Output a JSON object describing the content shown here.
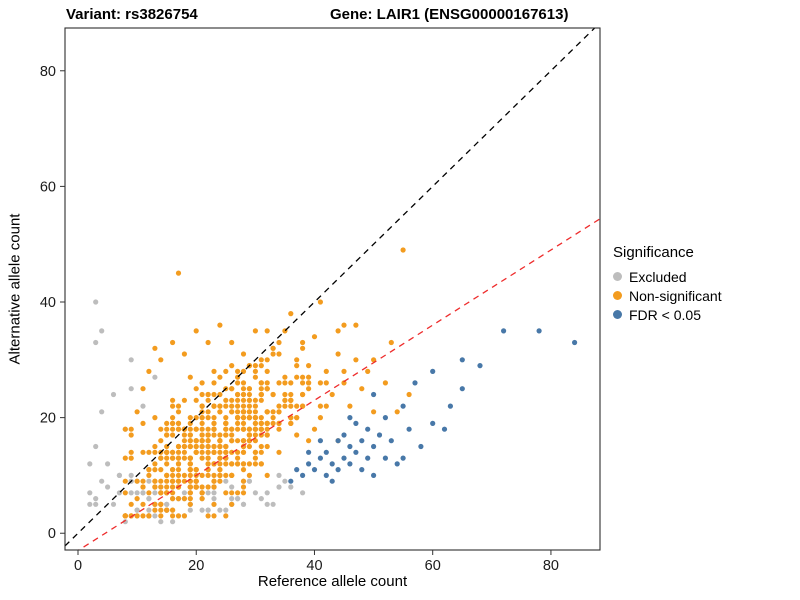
{
  "chart_data": {
    "type": "scatter",
    "title_left": "Variant: rs3826754",
    "title_right": "Gene: LAIR1 (ENSG00000167613)",
    "xlabel": "Reference allele count",
    "ylabel": "Alternative allele count",
    "xlim": [
      -2.2,
      88.3
    ],
    "ylim": [
      -2.9,
      87.4
    ],
    "xticks": [
      0,
      20,
      40,
      60,
      80
    ],
    "yticks": [
      0,
      20,
      40,
      60,
      80
    ],
    "grid": false,
    "legend": {
      "title": "Significance",
      "position": "right",
      "items": [
        {
          "id": "excluded",
          "label": "Excluded",
          "color": "#BDBDBD"
        },
        {
          "id": "nonsig",
          "label": "Non-significant",
          "color": "#F39C1F"
        },
        {
          "id": "fdr",
          "label": "FDR < 0.05",
          "color": "#4878A8"
        }
      ]
    },
    "lines": [
      {
        "name": "identity",
        "slope": 1,
        "intercept": 0,
        "color": "#000000",
        "dash": "6,5"
      },
      {
        "name": "fit",
        "slope": 0.65,
        "intercept": -3,
        "color": "#EE2C2C",
        "dash": "6,5"
      }
    ],
    "series": [
      {
        "id": "excluded",
        "name": "Excluded",
        "color": "#BDBDBD",
        "points": [
          [
            3,
            40
          ],
          [
            4,
            35
          ],
          [
            3,
            33
          ],
          [
            9,
            30
          ],
          [
            13,
            27
          ],
          [
            9,
            25
          ],
          [
            6,
            24
          ],
          [
            4,
            21
          ],
          [
            11,
            22
          ],
          [
            8,
            18
          ],
          [
            3,
            15
          ],
          [
            5,
            12
          ],
          [
            2,
            12
          ],
          [
            7,
            10
          ],
          [
            4,
            9
          ],
          [
            2,
            7
          ],
          [
            2,
            5
          ],
          [
            3,
            6
          ],
          [
            5,
            8
          ],
          [
            7,
            7
          ],
          [
            9,
            9
          ],
          [
            11,
            7
          ],
          [
            13,
            5
          ],
          [
            16,
            6
          ],
          [
            14,
            8
          ],
          [
            17,
            9
          ],
          [
            19,
            5
          ],
          [
            21,
            6
          ],
          [
            23,
            7
          ],
          [
            25,
            4
          ],
          [
            27,
            6
          ],
          [
            29,
            9
          ],
          [
            31,
            6
          ],
          [
            33,
            5
          ],
          [
            35,
            9
          ],
          [
            36,
            8
          ],
          [
            38,
            7
          ],
          [
            34,
            10
          ],
          [
            28,
            5
          ],
          [
            24,
            10
          ],
          [
            22,
            4
          ],
          [
            18,
            3
          ],
          [
            15,
            4
          ],
          [
            12,
            3
          ],
          [
            10,
            4
          ],
          [
            8,
            3
          ],
          [
            6,
            5
          ],
          [
            20,
            8
          ],
          [
            26,
            8
          ],
          [
            30,
            7
          ],
          [
            12,
            9
          ]
        ],
        "cluster": {
          "count": 60,
          "seed": 11,
          "x_mean": 18,
          "x_sd": 7,
          "x_min": 3,
          "x_max": 38,
          "y_slope": 0.05,
          "y_intercept": 5.2,
          "y_sd": 1.8,
          "y_min": 2,
          "y_max": 11
        }
      },
      {
        "id": "nonsig",
        "name": "Non-significant",
        "color": "#F39C1F",
        "points": [
          [
            17,
            45
          ],
          [
            55,
            49
          ],
          [
            41,
            40
          ],
          [
            36,
            38
          ],
          [
            44,
            35
          ],
          [
            47,
            36
          ],
          [
            50,
            30
          ],
          [
            53,
            33
          ],
          [
            47,
            30
          ],
          [
            44,
            31
          ],
          [
            40,
            34
          ],
          [
            38,
            33
          ],
          [
            35,
            35
          ],
          [
            33,
            32
          ],
          [
            30,
            35
          ],
          [
            28,
            31
          ],
          [
            26,
            33
          ],
          [
            24,
            36
          ],
          [
            22,
            33
          ],
          [
            20,
            35
          ],
          [
            18,
            31
          ],
          [
            16,
            33
          ],
          [
            14,
            30
          ],
          [
            12,
            28
          ],
          [
            11,
            25
          ],
          [
            10,
            21
          ],
          [
            9,
            17
          ],
          [
            52,
            26
          ],
          [
            54,
            21
          ],
          [
            50,
            21
          ],
          [
            48,
            25
          ],
          [
            46,
            22
          ],
          [
            45,
            26
          ],
          [
            42,
            28
          ],
          [
            56,
            24
          ],
          [
            13,
            32
          ],
          [
            31,
            30
          ],
          [
            37,
            30
          ],
          [
            43,
            24
          ],
          [
            49,
            28
          ]
        ],
        "cluster": {
          "count": 540,
          "seed": 42,
          "x_mean": 23,
          "x_sd": 8,
          "x_min": 8,
          "x_max": 56,
          "y_slope": 0.55,
          "y_intercept": 3.2,
          "y_sd": 5,
          "y_min": 3,
          "y_max": 44
        }
      },
      {
        "id": "fdr",
        "name": "FDR < 0.05",
        "color": "#4878A8",
        "points": [
          [
            36,
            9
          ],
          [
            37,
            11
          ],
          [
            38,
            10
          ],
          [
            39,
            12
          ],
          [
            39,
            14
          ],
          [
            40,
            11
          ],
          [
            41,
            13
          ],
          [
            41,
            16
          ],
          [
            42,
            14
          ],
          [
            42,
            10
          ],
          [
            43,
            12
          ],
          [
            43,
            9
          ],
          [
            44,
            16
          ],
          [
            44,
            11
          ],
          [
            45,
            13
          ],
          [
            45,
            17
          ],
          [
            46,
            12
          ],
          [
            46,
            15
          ],
          [
            46,
            20
          ],
          [
            47,
            14
          ],
          [
            47,
            19
          ],
          [
            48,
            11
          ],
          [
            48,
            16
          ],
          [
            49,
            13
          ],
          [
            49,
            18
          ],
          [
            50,
            15
          ],
          [
            50,
            10
          ],
          [
            50,
            24
          ],
          [
            51,
            17
          ],
          [
            52,
            13
          ],
          [
            52,
            20
          ],
          [
            53,
            16
          ],
          [
            54,
            12
          ],
          [
            55,
            22
          ],
          [
            55,
            13
          ],
          [
            56,
            18
          ],
          [
            57,
            26
          ],
          [
            58,
            15
          ],
          [
            60,
            19
          ],
          [
            60,
            28
          ],
          [
            62,
            18
          ],
          [
            63,
            22
          ],
          [
            65,
            30
          ],
          [
            65,
            25
          ],
          [
            68,
            29
          ],
          [
            72,
            35
          ],
          [
            78,
            35
          ],
          [
            84,
            33
          ]
        ]
      }
    ]
  }
}
